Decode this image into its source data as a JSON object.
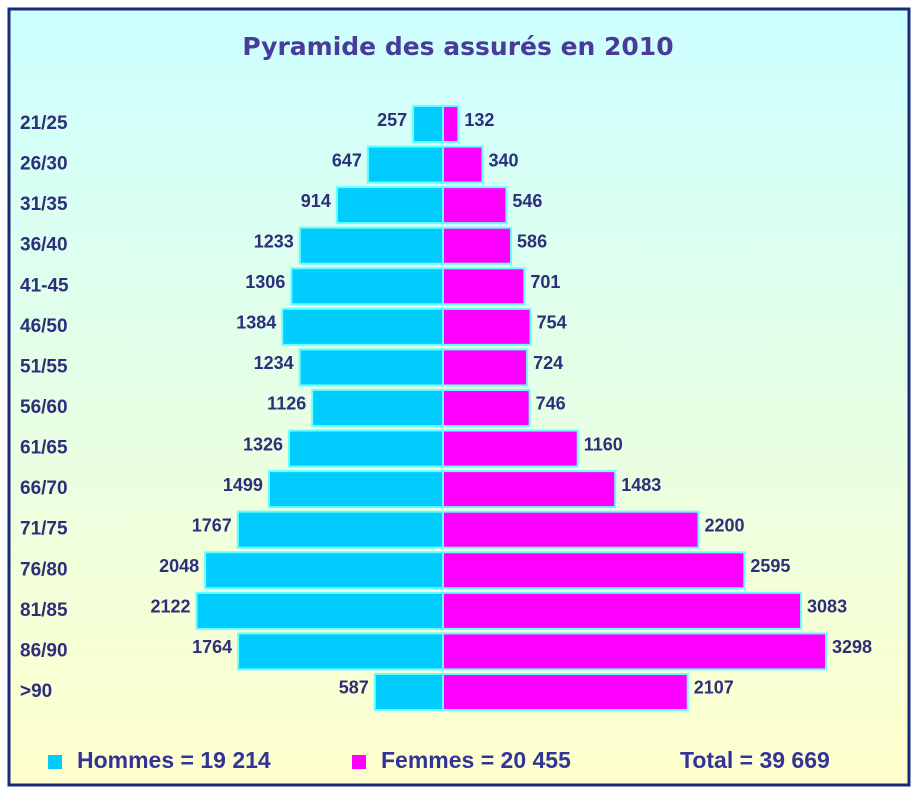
{
  "chart_data": {
    "type": "pyramid",
    "title": "Pyramide des assurés en 2010",
    "categories": [
      "21/25",
      "26/30",
      "31/35",
      "36/40",
      "41-45",
      "46/50",
      "51/55",
      "56/60",
      "61/65",
      "66/70",
      "71/75",
      "76/80",
      "81/85",
      "86/90",
      ">90"
    ],
    "series": [
      {
        "name": "Hommes = 19 214",
        "color": "#00ccff",
        "values": [
          257,
          647,
          914,
          1233,
          1306,
          1384,
          1234,
          1126,
          1326,
          1499,
          1767,
          2048,
          2122,
          1764,
          587
        ]
      },
      {
        "name": "Femmes = 20 455",
        "color": "#ff00ff",
        "values": [
          132,
          340,
          546,
          586,
          701,
          754,
          724,
          746,
          1160,
          1483,
          2200,
          2595,
          3083,
          3298,
          2107
        ]
      }
    ],
    "annotation": "Total = 39 669"
  }
}
